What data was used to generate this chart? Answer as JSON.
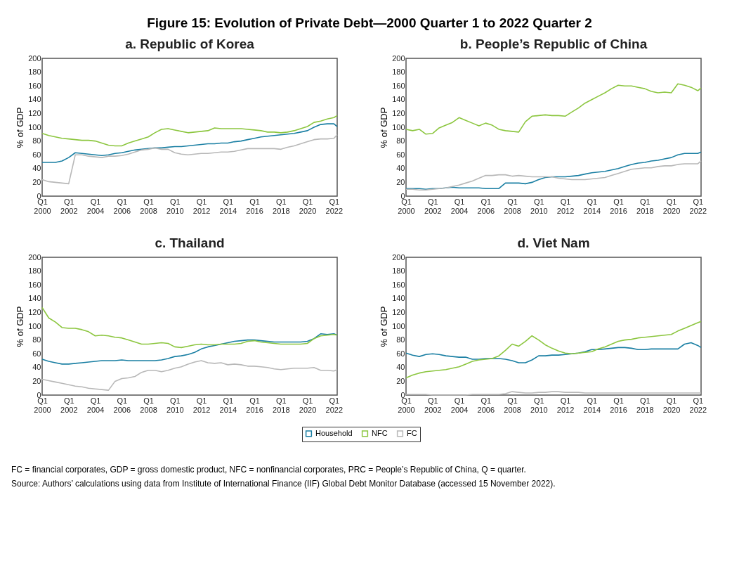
{
  "chart_data": [
    {
      "type": "line",
      "title": "a. Republic of Korea",
      "ylabel": "% of GDP",
      "legend": "bottom",
      "grid": false,
      "line_style": "solid",
      "marker": "none",
      "x": [
        "2000-01",
        "2000-07",
        "2001-01",
        "2001-07",
        "2002-01",
        "2002-07",
        "2003-01",
        "2003-07",
        "2004-01",
        "2004-07",
        "2005-01",
        "2005-07",
        "2006-01",
        "2006-07",
        "2007-01",
        "2007-07",
        "2008-01",
        "2008-07",
        "2009-01",
        "2009-07",
        "2010-01",
        "2010-07",
        "2011-01",
        "2011-07",
        "2012-01",
        "2012-07",
        "2013-01",
        "2013-07",
        "2014-01",
        "2014-07",
        "2015-01",
        "2015-07",
        "2016-01",
        "2016-07",
        "2017-01",
        "2017-07",
        "2018-01",
        "2018-07",
        "2019-01",
        "2019-07",
        "2020-01",
        "2020-07",
        "2021-01",
        "2021-07",
        "2022-01",
        "2022-04"
      ],
      "xlim": [
        "2000-01",
        "2022-04"
      ],
      "xticks": [
        {
          "value": "2000-01",
          "label": "Q1 2000"
        },
        {
          "value": "2002-01",
          "label": "Q1 2002"
        },
        {
          "value": "2004-01",
          "label": "Q1 2004"
        },
        {
          "value": "2006-01",
          "label": "Q1 2006"
        },
        {
          "value": "2008-01",
          "label": "Q1 2008"
        },
        {
          "value": "2010-01",
          "label": "Q1 2010"
        },
        {
          "value": "2012-01",
          "label": "Q1 2012"
        },
        {
          "value": "2014-01",
          "label": "Q1 2014"
        },
        {
          "value": "2016-01",
          "label": "Q1 2016"
        },
        {
          "value": "2018-01",
          "label": "Q1 2018"
        },
        {
          "value": "2020-01",
          "label": "Q1 2020"
        },
        {
          "value": "2022-01",
          "label": "Q1 2022"
        }
      ],
      "ylim": [
        0,
        200
      ],
      "yticks": [
        0,
        20,
        40,
        60,
        80,
        100,
        120,
        140,
        160,
        180,
        200
      ],
      "series": [
        {
          "name": "Household",
          "color": "#1a7fa3",
          "values": [
            49,
            49,
            49,
            51,
            56,
            63,
            62,
            61,
            60,
            59,
            60,
            62,
            63,
            65,
            67,
            68,
            69,
            70,
            70,
            71,
            72,
            72,
            73,
            74,
            75,
            76,
            76,
            77,
            77,
            79,
            80,
            82,
            84,
            86,
            87,
            88,
            89,
            90,
            91,
            93,
            95,
            100,
            104,
            105,
            105,
            101
          ]
        },
        {
          "name": "NFC",
          "color": "#8cc63f",
          "values": [
            91,
            88,
            86,
            84,
            83,
            82,
            81,
            81,
            80,
            77,
            74,
            73,
            73,
            77,
            80,
            83,
            86,
            92,
            97,
            98,
            96,
            94,
            92,
            93,
            94,
            95,
            99,
            98,
            98,
            98,
            98,
            97,
            96,
            95,
            93,
            93,
            92,
            93,
            95,
            98,
            101,
            107,
            109,
            112,
            114,
            117
          ]
        },
        {
          "name": "FC",
          "color": "#b8b8b8",
          "values": [
            24,
            21,
            20,
            19,
            18,
            60,
            60,
            58,
            57,
            56,
            58,
            58,
            59,
            61,
            64,
            67,
            68,
            70,
            68,
            68,
            63,
            61,
            60,
            61,
            62,
            62,
            63,
            64,
            64,
            65,
            67,
            69,
            69,
            69,
            69,
            69,
            68,
            71,
            73,
            76,
            79,
            82,
            83,
            83,
            84,
            89
          ]
        }
      ]
    },
    {
      "type": "line",
      "title": "b. People’s Republic of China",
      "ylabel": "% of GDP",
      "legend": "bottom",
      "grid": false,
      "line_style": "solid",
      "marker": "none",
      "x": [
        "2000-01",
        "2000-07",
        "2001-01",
        "2001-07",
        "2002-01",
        "2002-07",
        "2003-01",
        "2003-07",
        "2004-01",
        "2004-07",
        "2005-01",
        "2005-07",
        "2006-01",
        "2006-07",
        "2007-01",
        "2007-07",
        "2008-01",
        "2008-07",
        "2009-01",
        "2009-07",
        "2010-01",
        "2010-07",
        "2011-01",
        "2011-07",
        "2012-01",
        "2012-07",
        "2013-01",
        "2013-07",
        "2014-01",
        "2014-07",
        "2015-01",
        "2015-07",
        "2016-01",
        "2016-07",
        "2017-01",
        "2017-07",
        "2018-01",
        "2018-07",
        "2019-01",
        "2019-07",
        "2020-01",
        "2020-07",
        "2021-01",
        "2021-07",
        "2022-01",
        "2022-04"
      ],
      "xlim": [
        "2000-01",
        "2022-04"
      ],
      "xticks": [
        {
          "value": "2000-01",
          "label": "Q1 2000"
        },
        {
          "value": "2002-01",
          "label": "Q1 2002"
        },
        {
          "value": "2004-01",
          "label": "Q1 2004"
        },
        {
          "value": "2006-01",
          "label": "Q1 2006"
        },
        {
          "value": "2008-01",
          "label": "Q1 2008"
        },
        {
          "value": "2010-01",
          "label": "Q1 2010"
        },
        {
          "value": "2012-01",
          "label": "Q1 2012"
        },
        {
          "value": "2014-01",
          "label": "Q1 2014"
        },
        {
          "value": "2016-01",
          "label": "Q1 2016"
        },
        {
          "value": "2018-01",
          "label": "Q1 2018"
        },
        {
          "value": "2020-01",
          "label": "Q1 2020"
        },
        {
          "value": "2022-01",
          "label": "Q1 2022"
        }
      ],
      "ylim": [
        0,
        200
      ],
      "yticks": [
        0,
        20,
        40,
        60,
        80,
        100,
        120,
        140,
        160,
        180,
        200
      ],
      "series": [
        {
          "name": "Household",
          "color": "#1a7fa3",
          "values": [
            11,
            11,
            11,
            10,
            11,
            11,
            12,
            13,
            12,
            12,
            12,
            12,
            11,
            11,
            11,
            19,
            19,
            19,
            18,
            20,
            24,
            27,
            28,
            28,
            28,
            29,
            30,
            32,
            34,
            35,
            36,
            38,
            40,
            43,
            46,
            48,
            49,
            51,
            52,
            54,
            56,
            60,
            62,
            62,
            62,
            64
          ]
        },
        {
          "name": "NFC",
          "color": "#8cc63f",
          "values": [
            97,
            95,
            97,
            90,
            91,
            99,
            103,
            107,
            114,
            110,
            106,
            102,
            106,
            103,
            97,
            95,
            94,
            93,
            108,
            116,
            117,
            118,
            117,
            117,
            116,
            122,
            128,
            135,
            140,
            145,
            150,
            156,
            161,
            160,
            160,
            158,
            156,
            152,
            150,
            151,
            150,
            163,
            161,
            158,
            153,
            157
          ]
        },
        {
          "name": "FC",
          "color": "#b8b8b8",
          "values": [
            10,
            10,
            9,
            9,
            10,
            11,
            12,
            14,
            16,
            19,
            22,
            26,
            30,
            30,
            31,
            31,
            29,
            30,
            29,
            28,
            28,
            28,
            28,
            26,
            25,
            24,
            24,
            24,
            25,
            26,
            27,
            30,
            33,
            36,
            39,
            40,
            41,
            41,
            43,
            44,
            44,
            46,
            47,
            47,
            47,
            51
          ]
        }
      ]
    },
    {
      "type": "line",
      "title": "c. Thailand",
      "ylabel": "% of GDP",
      "legend": "bottom",
      "grid": false,
      "line_style": "solid",
      "marker": "none",
      "x": [
        "2000-01",
        "2000-07",
        "2001-01",
        "2001-07",
        "2002-01",
        "2002-07",
        "2003-01",
        "2003-07",
        "2004-01",
        "2004-07",
        "2005-01",
        "2005-07",
        "2006-01",
        "2006-07",
        "2007-01",
        "2007-07",
        "2008-01",
        "2008-07",
        "2009-01",
        "2009-07",
        "2010-01",
        "2010-07",
        "2011-01",
        "2011-07",
        "2012-01",
        "2012-07",
        "2013-01",
        "2013-07",
        "2014-01",
        "2014-07",
        "2015-01",
        "2015-07",
        "2016-01",
        "2016-07",
        "2017-01",
        "2017-07",
        "2018-01",
        "2018-07",
        "2019-01",
        "2019-07",
        "2020-01",
        "2020-07",
        "2021-01",
        "2021-07",
        "2022-01",
        "2022-04"
      ],
      "xlim": [
        "2000-01",
        "2022-04"
      ],
      "xticks": [
        {
          "value": "2000-01",
          "label": "Q1 2000"
        },
        {
          "value": "2002-01",
          "label": "Q1 2002"
        },
        {
          "value": "2004-01",
          "label": "Q1 2004"
        },
        {
          "value": "2006-01",
          "label": "Q1 2006"
        },
        {
          "value": "2008-01",
          "label": "Q1 2008"
        },
        {
          "value": "2010-01",
          "label": "Q1 2010"
        },
        {
          "value": "2012-01",
          "label": "Q1 2012"
        },
        {
          "value": "2014-01",
          "label": "Q1 2014"
        },
        {
          "value": "2016-01",
          "label": "Q1 2016"
        },
        {
          "value": "2018-01",
          "label": "Q1 2018"
        },
        {
          "value": "2020-01",
          "label": "Q1 2020"
        },
        {
          "value": "2022-01",
          "label": "Q1 2022"
        }
      ],
      "ylim": [
        0,
        200
      ],
      "yticks": [
        0,
        20,
        40,
        60,
        80,
        100,
        120,
        140,
        160,
        180,
        200
      ],
      "series": [
        {
          "name": "Household",
          "color": "#1a7fa3",
          "values": [
            52,
            49,
            47,
            45,
            45,
            46,
            47,
            48,
            49,
            50,
            50,
            50,
            51,
            50,
            50,
            50,
            50,
            50,
            51,
            53,
            56,
            57,
            59,
            62,
            67,
            70,
            72,
            74,
            76,
            78,
            79,
            80,
            80,
            79,
            78,
            77,
            77,
            77,
            77,
            77,
            78,
            82,
            89,
            88,
            89,
            87
          ]
        },
        {
          "name": "NFC",
          "color": "#8cc63f",
          "values": [
            127,
            112,
            106,
            98,
            97,
            97,
            95,
            92,
            86,
            87,
            86,
            84,
            83,
            80,
            77,
            74,
            74,
            75,
            76,
            75,
            70,
            69,
            71,
            73,
            74,
            73,
            73,
            74,
            74,
            74,
            75,
            78,
            79,
            77,
            76,
            75,
            74,
            74,
            74,
            74,
            75,
            82,
            86,
            87,
            88,
            87
          ]
        },
        {
          "name": "FC",
          "color": "#b8b8b8",
          "values": [
            23,
            21,
            19,
            17,
            15,
            13,
            12,
            10,
            9,
            8,
            7,
            20,
            24,
            25,
            27,
            33,
            36,
            36,
            34,
            36,
            39,
            41,
            45,
            48,
            50,
            47,
            46,
            47,
            44,
            45,
            44,
            42,
            42,
            41,
            40,
            38,
            37,
            38,
            39,
            39,
            39,
            40,
            36,
            36,
            35,
            37
          ]
        }
      ]
    },
    {
      "type": "line",
      "title": "d. Viet Nam",
      "ylabel": "% of GDP",
      "legend": "bottom",
      "grid": false,
      "line_style": "solid",
      "marker": "none",
      "x": [
        "2000-01",
        "2000-07",
        "2001-01",
        "2001-07",
        "2002-01",
        "2002-07",
        "2003-01",
        "2003-07",
        "2004-01",
        "2004-07",
        "2005-01",
        "2005-07",
        "2006-01",
        "2006-07",
        "2007-01",
        "2007-07",
        "2008-01",
        "2008-07",
        "2009-01",
        "2009-07",
        "2010-01",
        "2010-07",
        "2011-01",
        "2011-07",
        "2012-01",
        "2012-07",
        "2013-01",
        "2013-07",
        "2014-01",
        "2014-07",
        "2015-01",
        "2015-07",
        "2016-01",
        "2016-07",
        "2017-01",
        "2017-07",
        "2018-01",
        "2018-07",
        "2019-01",
        "2019-07",
        "2020-01",
        "2020-07",
        "2021-01",
        "2021-07",
        "2022-01",
        "2022-04"
      ],
      "xlim": [
        "2000-01",
        "2022-04"
      ],
      "xticks": [
        {
          "value": "2000-01",
          "label": "Q1 2000"
        },
        {
          "value": "2002-01",
          "label": "Q1 2002"
        },
        {
          "value": "2004-01",
          "label": "Q1 2004"
        },
        {
          "value": "2006-01",
          "label": "Q1 2006"
        },
        {
          "value": "2008-01",
          "label": "Q1 2008"
        },
        {
          "value": "2010-01",
          "label": "Q1 2010"
        },
        {
          "value": "2012-01",
          "label": "Q1 2012"
        },
        {
          "value": "2014-01",
          "label": "Q1 2014"
        },
        {
          "value": "2016-01",
          "label": "Q1 2016"
        },
        {
          "value": "2018-01",
          "label": "Q1 2018"
        },
        {
          "value": "2020-01",
          "label": "Q1 2020"
        },
        {
          "value": "2022-01",
          "label": "Q1 2022"
        }
      ],
      "ylim": [
        0,
        200
      ],
      "yticks": [
        0,
        20,
        40,
        60,
        80,
        100,
        120,
        140,
        160,
        180,
        200
      ],
      "series": [
        {
          "name": "Household",
          "color": "#1a7fa3",
          "values": [
            61,
            58,
            56,
            59,
            60,
            59,
            57,
            56,
            55,
            55,
            52,
            52,
            53,
            53,
            53,
            52,
            50,
            47,
            47,
            51,
            57,
            57,
            58,
            58,
            59,
            60,
            61,
            63,
            66,
            66,
            67,
            68,
            69,
            69,
            68,
            66,
            66,
            67,
            67,
            67,
            67,
            67,
            74,
            76,
            72,
            69
          ]
        },
        {
          "name": "NFC",
          "color": "#8cc63f",
          "values": [
            25,
            29,
            32,
            34,
            35,
            36,
            37,
            39,
            41,
            45,
            49,
            51,
            52,
            53,
            57,
            65,
            74,
            71,
            78,
            86,
            80,
            73,
            68,
            64,
            61,
            60,
            61,
            62,
            63,
            67,
            70,
            74,
            78,
            80,
            81,
            83,
            84,
            85,
            86,
            87,
            88,
            93,
            97,
            101,
            105,
            107
          ]
        },
        {
          "name": "FC",
          "color": "#b8b8b8",
          "values": [
            1,
            1,
            1,
            1,
            0,
            0,
            0,
            0,
            0,
            0,
            1,
            1,
            1,
            1,
            1,
            2,
            5,
            4,
            3,
            3,
            4,
            4,
            5,
            5,
            4,
            4,
            4,
            3,
            3,
            3,
            3,
            3,
            3,
            3,
            3,
            3,
            3,
            3,
            3,
            3,
            3,
            3,
            3,
            3,
            3,
            3
          ]
        }
      ]
    },
    {
      "type": "other",
      "title": "Figure 15: Evolution of Private Debt—2000 Quarter 1 to 2022 Quarter 2",
      "annotations": [
        "FC = financial corporates, GDP = gross domestic product, NFC = nonfinancial corporates, PRC = People’s Republic of China, Q = quarter.",
        "Source: Authors’ calculations using data from Institute of International Finance (IIF) Global Debt Monitor Database (accessed 15 November 2022)."
      ]
    }
  ]
}
